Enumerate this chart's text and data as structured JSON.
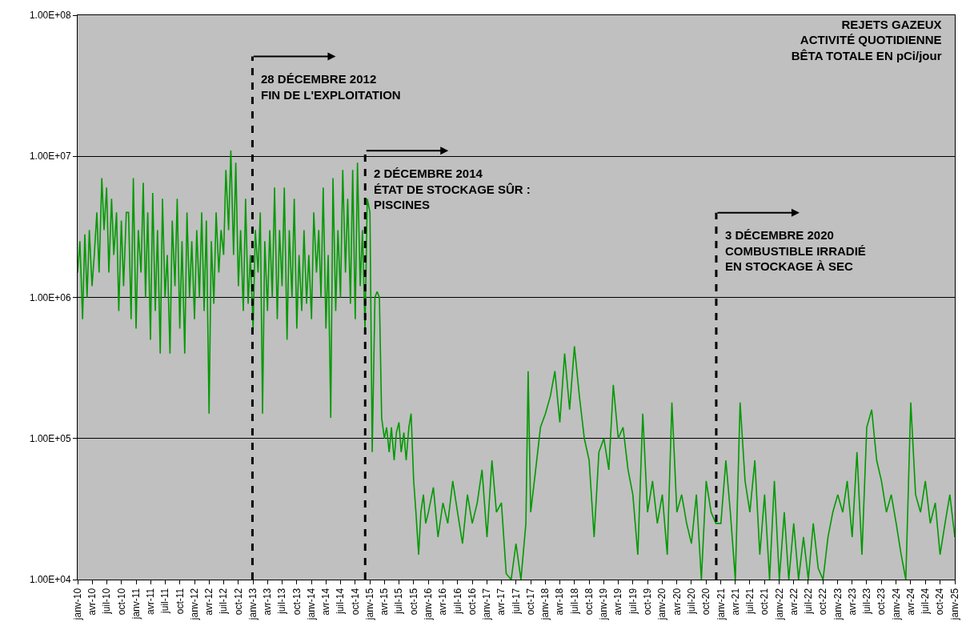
{
  "chart_data": {
    "type": "line",
    "title": "REJETS GAZEUX\nACTIVITÉ QUOTIDIENNE\nBÊTA TOTALE EN pCi/jour",
    "x": [
      "2010-01-01",
      "2010-01-15",
      "2010-02-01",
      "2010-02-15",
      "2010-03-01",
      "2010-03-15",
      "2010-04-01",
      "2010-04-15",
      "2010-05-01",
      "2010-05-15",
      "2010-06-01",
      "2010-06-15",
      "2010-07-01",
      "2010-07-15",
      "2010-08-01",
      "2010-08-15",
      "2010-09-01",
      "2010-09-15",
      "2010-10-01",
      "2010-10-15",
      "2010-11-01",
      "2010-11-15",
      "2010-12-01",
      "2010-12-15",
      "2011-01-01",
      "2011-01-15",
      "2011-02-01",
      "2011-02-15",
      "2011-03-01",
      "2011-03-15",
      "2011-04-01",
      "2011-04-15",
      "2011-05-01",
      "2011-05-15",
      "2011-06-01",
      "2011-06-15",
      "2011-07-01",
      "2011-07-15",
      "2011-08-01",
      "2011-08-15",
      "2011-09-01",
      "2011-09-15",
      "2011-10-01",
      "2011-10-15",
      "2011-11-01",
      "2011-11-15",
      "2011-12-01",
      "2011-12-15",
      "2012-01-01",
      "2012-01-15",
      "2012-02-01",
      "2012-02-15",
      "2012-03-01",
      "2012-03-15",
      "2012-04-01",
      "2012-04-15",
      "2012-05-01",
      "2012-05-15",
      "2012-06-01",
      "2012-06-15",
      "2012-07-01",
      "2012-07-15",
      "2012-08-01",
      "2012-08-15",
      "2012-09-01",
      "2012-09-15",
      "2012-10-01",
      "2012-10-15",
      "2012-11-01",
      "2012-11-15",
      "2012-12-01",
      "2012-12-15",
      "2013-01-01",
      "2013-01-15",
      "2013-02-01",
      "2013-02-15",
      "2013-03-01",
      "2013-03-15",
      "2013-04-01",
      "2013-04-15",
      "2013-05-01",
      "2013-05-15",
      "2013-06-01",
      "2013-06-15",
      "2013-07-01",
      "2013-07-15",
      "2013-08-01",
      "2013-08-15",
      "2013-09-01",
      "2013-09-15",
      "2013-10-01",
      "2013-10-15",
      "2013-11-01",
      "2013-11-15",
      "2013-12-01",
      "2013-12-15",
      "2014-01-01",
      "2014-01-15",
      "2014-02-01",
      "2014-02-15",
      "2014-03-01",
      "2014-03-15",
      "2014-04-01",
      "2014-04-15",
      "2014-05-01",
      "2014-05-15",
      "2014-06-01",
      "2014-06-15",
      "2014-07-01",
      "2014-07-15",
      "2014-08-01",
      "2014-08-15",
      "2014-09-01",
      "2014-09-15",
      "2014-10-01",
      "2014-10-15",
      "2014-11-01",
      "2014-11-15",
      "2014-12-01",
      "2014-12-15",
      "2015-01-01",
      "2015-01-15",
      "2015-02-01",
      "2015-02-15",
      "2015-03-01",
      "2015-03-15",
      "2015-04-01",
      "2015-04-15",
      "2015-05-01",
      "2015-05-15",
      "2015-06-01",
      "2015-06-15",
      "2015-07-01",
      "2015-07-15",
      "2015-08-01",
      "2015-08-15",
      "2015-09-01",
      "2015-09-15",
      "2015-10-01",
      "2015-10-15",
      "2015-11-01",
      "2015-11-15",
      "2015-12-01",
      "2015-12-15",
      "2016-01-01",
      "2016-02-01",
      "2016-03-01",
      "2016-04-01",
      "2016-05-01",
      "2016-06-01",
      "2016-07-01",
      "2016-08-01",
      "2016-09-01",
      "2016-10-01",
      "2016-11-01",
      "2016-12-01",
      "2017-01-01",
      "2017-02-01",
      "2017-03-01",
      "2017-04-01",
      "2017-05-01",
      "2017-06-01",
      "2017-07-01",
      "2017-08-01",
      "2017-09-01",
      "2017-09-15",
      "2017-10-01",
      "2017-11-01",
      "2017-12-01",
      "2018-01-01",
      "2018-02-01",
      "2018-03-01",
      "2018-04-01",
      "2018-05-01",
      "2018-06-01",
      "2018-07-01",
      "2018-08-01",
      "2018-09-01",
      "2018-10-01",
      "2018-11-01",
      "2018-12-01",
      "2019-01-01",
      "2019-02-01",
      "2019-03-01",
      "2019-04-01",
      "2019-05-01",
      "2019-06-01",
      "2019-07-01",
      "2019-08-01",
      "2019-09-01",
      "2019-10-01",
      "2019-11-01",
      "2019-12-01",
      "2020-01-01",
      "2020-02-01",
      "2020-03-01",
      "2020-04-01",
      "2020-05-01",
      "2020-06-01",
      "2020-07-01",
      "2020-08-01",
      "2020-09-01",
      "2020-10-01",
      "2020-11-01",
      "2020-12-01",
      "2021-01-01",
      "2021-02-01",
      "2021-03-01",
      "2021-04-01",
      "2021-05-01",
      "2021-06-01",
      "2021-07-01",
      "2021-08-01",
      "2021-09-01",
      "2021-10-01",
      "2021-11-01",
      "2021-12-01",
      "2022-01-01",
      "2022-02-01",
      "2022-03-01",
      "2022-04-01",
      "2022-05-01",
      "2022-06-01",
      "2022-07-01",
      "2022-08-01",
      "2022-09-01",
      "2022-10-01",
      "2022-11-01",
      "2022-12-01",
      "2023-01-01",
      "2023-02-01",
      "2023-03-01",
      "2023-04-01",
      "2023-05-01",
      "2023-06-01",
      "2023-07-01",
      "2023-08-01",
      "2023-09-01",
      "2023-10-01",
      "2023-11-01",
      "2023-12-01",
      "2024-01-01",
      "2024-02-01",
      "2024-03-01",
      "2024-04-01",
      "2024-05-01",
      "2024-06-01",
      "2024-07-01",
      "2024-08-01",
      "2024-09-01",
      "2024-10-01",
      "2024-11-01",
      "2024-12-01",
      "2025-01-01"
    ],
    "series": [
      {
        "color": "#009900",
        "values": [
          1500000,
          2500000,
          700000,
          2800000,
          1000000,
          3000000,
          1200000,
          2000000,
          4000000,
          1500000,
          7000000,
          3000000,
          6000000,
          1500000,
          5000000,
          2000000,
          4000000,
          800000,
          3500000,
          1200000,
          4000000,
          4000000,
          700000,
          7000000,
          600000,
          3000000,
          1500000,
          6500000,
          1000000,
          4000000,
          500000,
          5500000,
          800000,
          3000000,
          400000,
          5000000,
          1000000,
          2000000,
          400000,
          3500000,
          1200000,
          5000000,
          600000,
          2500000,
          400000,
          4000000,
          1000000,
          2500000,
          700000,
          3000000,
          1000000,
          4000000,
          800000,
          3500000,
          150000,
          2500000,
          900000,
          4000000,
          1500000,
          3000000,
          2000000,
          8000000,
          3000000,
          11000000,
          2000000,
          9000000,
          1200000,
          3000000,
          800000,
          5000000,
          900000,
          2000000,
          600000,
          3000000,
          1500000,
          4000000,
          150000,
          2500000,
          800000,
          3000000,
          1000000,
          6000000,
          700000,
          3000000,
          1200000,
          6000000,
          500000,
          3000000,
          1000000,
          5000000,
          600000,
          2000000,
          800000,
          3000000,
          900000,
          2000000,
          700000,
          4000000,
          1500000,
          3000000,
          1000000,
          6000000,
          600000,
          2000000,
          140000,
          7000000,
          800000,
          3000000,
          1000000,
          8000000,
          1500000,
          5000000,
          900000,
          8000000,
          700000,
          9000000,
          1200000,
          3000000,
          600000,
          5000000,
          4000000,
          80000,
          1000000,
          1100000,
          1000000,
          140000,
          100000,
          120000,
          80000,
          120000,
          70000,
          110000,
          130000,
          80000,
          110000,
          70000,
          120000,
          150000,
          50000,
          30000,
          15000,
          30000,
          40000,
          25000,
          30000,
          45000,
          20000,
          35000,
          25000,
          50000,
          30000,
          18000,
          40000,
          25000,
          35000,
          60000,
          20000,
          70000,
          30000,
          35000,
          11000,
          10000,
          18000,
          10000,
          25000,
          300000,
          30000,
          60000,
          120000,
          150000,
          200000,
          300000,
          130000,
          400000,
          160000,
          450000,
          200000,
          100000,
          70000,
          20000,
          80000,
          100000,
          60000,
          240000,
          100000,
          120000,
          60000,
          40000,
          15000,
          150000,
          30000,
          50000,
          25000,
          40000,
          15000,
          180000,
          30000,
          40000,
          25000,
          18000,
          40000,
          10000,
          50000,
          30000,
          25000,
          25000,
          70000,
          30000,
          10000,
          180000,
          50000,
          30000,
          70000,
          15000,
          40000,
          10000,
          50000,
          10000,
          30000,
          10000,
          25000,
          10000,
          20000,
          10000,
          25000,
          12000,
          10000,
          20000,
          30000,
          40000,
          30000,
          50000,
          20000,
          80000,
          15000,
          120000,
          160000,
          70000,
          50000,
          30000,
          40000,
          25000,
          15000,
          10000,
          180000,
          40000,
          30000,
          50000,
          25000,
          35000,
          15000,
          25000,
          40000,
          20000
        ]
      }
    ],
    "xlim": [
      "2010-01-01",
      "2025-01-01"
    ],
    "xticks": [
      {
        "value": "2010-01-01",
        "label": "janv-10"
      },
      {
        "value": "2010-04-01",
        "label": "avr-10"
      },
      {
        "value": "2010-07-01",
        "label": "juil-10"
      },
      {
        "value": "2010-10-01",
        "label": "oct-10"
      },
      {
        "value": "2011-01-01",
        "label": "janv-11"
      },
      {
        "value": "2011-04-01",
        "label": "avr-11"
      },
      {
        "value": "2011-07-01",
        "label": "juil-11"
      },
      {
        "value": "2011-10-01",
        "label": "oct-11"
      },
      {
        "value": "2012-01-01",
        "label": "janv-12"
      },
      {
        "value": "2012-04-01",
        "label": "avr-12"
      },
      {
        "value": "2012-07-01",
        "label": "juil-12"
      },
      {
        "value": "2012-10-01",
        "label": "oct-12"
      },
      {
        "value": "2013-01-01",
        "label": "janv-13"
      },
      {
        "value": "2013-04-01",
        "label": "avr-13"
      },
      {
        "value": "2013-07-01",
        "label": "juil-13"
      },
      {
        "value": "2013-10-01",
        "label": "oct-13"
      },
      {
        "value": "2014-01-01",
        "label": "janv-14"
      },
      {
        "value": "2014-04-01",
        "label": "avr-14"
      },
      {
        "value": "2014-07-01",
        "label": "juil-14"
      },
      {
        "value": "2014-10-01",
        "label": "oct-14"
      },
      {
        "value": "2015-01-01",
        "label": "janv-15"
      },
      {
        "value": "2015-04-01",
        "label": "avr-15"
      },
      {
        "value": "2015-07-01",
        "label": "juil-15"
      },
      {
        "value": "2015-10-01",
        "label": "oct-15"
      },
      {
        "value": "2016-01-01",
        "label": "janv-16"
      },
      {
        "value": "2016-04-01",
        "label": "avr-16"
      },
      {
        "value": "2016-07-01",
        "label": "juil-16"
      },
      {
        "value": "2016-10-01",
        "label": "oct-16"
      },
      {
        "value": "2017-01-01",
        "label": "janv-17"
      },
      {
        "value": "2017-04-01",
        "label": "avr-17"
      },
      {
        "value": "2017-07-01",
        "label": "juil-17"
      },
      {
        "value": "2017-10-01",
        "label": "oct-17"
      },
      {
        "value": "2018-01-01",
        "label": "janv-18"
      },
      {
        "value": "2018-04-01",
        "label": "avr-18"
      },
      {
        "value": "2018-07-01",
        "label": "juil-18"
      },
      {
        "value": "2018-10-01",
        "label": "oct-18"
      },
      {
        "value": "2019-01-01",
        "label": "janv-19"
      },
      {
        "value": "2019-04-01",
        "label": "avr-19"
      },
      {
        "value": "2019-07-01",
        "label": "juil-19"
      },
      {
        "value": "2019-10-01",
        "label": "oct-19"
      },
      {
        "value": "2020-01-01",
        "label": "janv-20"
      },
      {
        "value": "2020-04-01",
        "label": "avr-20"
      },
      {
        "value": "2020-07-01",
        "label": "juil-20"
      },
      {
        "value": "2020-10-01",
        "label": "oct-20"
      },
      {
        "value": "2021-01-01",
        "label": "janv-21"
      },
      {
        "value": "2021-04-01",
        "label": "avr-21"
      },
      {
        "value": "2021-07-01",
        "label": "juil-21"
      },
      {
        "value": "2021-10-01",
        "label": "oct-21"
      },
      {
        "value": "2022-01-01",
        "label": "janv-22"
      },
      {
        "value": "2022-04-01",
        "label": "avr-22"
      },
      {
        "value": "2022-07-01",
        "label": "juil-22"
      },
      {
        "value": "2022-10-01",
        "label": "oct-22"
      },
      {
        "value": "2023-01-01",
        "label": "janv-23"
      },
      {
        "value": "2023-04-01",
        "label": "avr-23"
      },
      {
        "value": "2023-07-01",
        "label": "juil-23"
      },
      {
        "value": "2023-10-01",
        "label": "oct-23"
      },
      {
        "value": "2024-01-01",
        "label": "janv-24"
      },
      {
        "value": "2024-04-01",
        "label": "avr-24"
      },
      {
        "value": "2024-07-01",
        "label": "juil-24"
      },
      {
        "value": "2024-10-01",
        "label": "oct-24"
      },
      {
        "value": "2025-01-01",
        "label": "janv-25"
      }
    ],
    "ylim": [
      10000,
      100000000
    ],
    "yticks": [
      {
        "value": 10000,
        "label": "1.00E+04"
      },
      {
        "value": 100000,
        "label": "1.00E+05"
      },
      {
        "value": 1000000,
        "label": "1.00E+06"
      },
      {
        "value": 10000000,
        "label": "1.00E+07"
      },
      {
        "value": 100000000,
        "label": "1.00E+08"
      }
    ],
    "log": "y",
    "grid": "y",
    "marker": "none",
    "line_style": "solid",
    "ref_lines": [
      {
        "axis": "x",
        "value": "2012-12-28",
        "label": "28 DÉCEMBRE 2012\nFIN DE L'EXPLOITATION",
        "color": "#000000",
        "line_style": "dashed"
      },
      {
        "axis": "x",
        "value": "2014-12-02",
        "label": "2 DÉCEMBRE 2014\nÉTAT DE STOCKAGE SÛR :\nPISCINES",
        "color": "#000000",
        "line_style": "dashed"
      },
      {
        "axis": "x",
        "value": "2020-12-03",
        "label": "3 DÉCEMBRE 2020\nCOMBUSTIBLE IRRADIÉ\nEN STOCKAGE À SEC",
        "color": "#000000",
        "line_style": "dashed"
      }
    ]
  }
}
